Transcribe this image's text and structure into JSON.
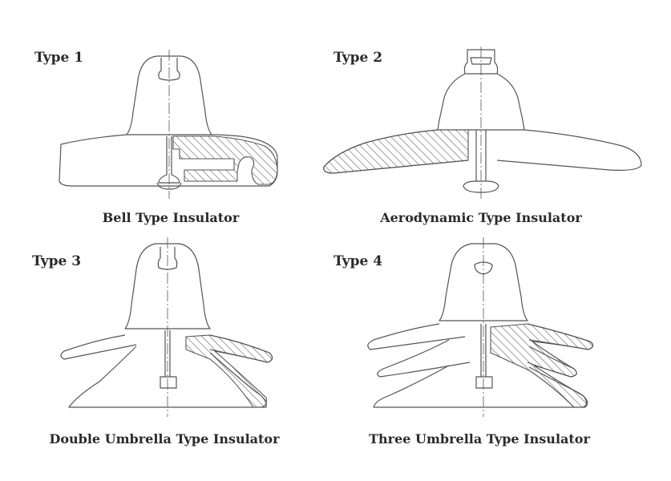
{
  "panels": [
    {
      "type_label": "Type 1",
      "caption": "Bell Type Insulator"
    },
    {
      "type_label": "Type 2",
      "caption": "Aerodynamic Type Insulator"
    },
    {
      "type_label": "Type 3",
      "caption": "Double Umbrella Type Insulator"
    },
    {
      "type_label": "Type 4",
      "caption": "Three Umbrella Type Insulator"
    }
  ],
  "colors": {
    "line": "#555555",
    "text": "#2a2a2a",
    "background": "#ffffff"
  }
}
